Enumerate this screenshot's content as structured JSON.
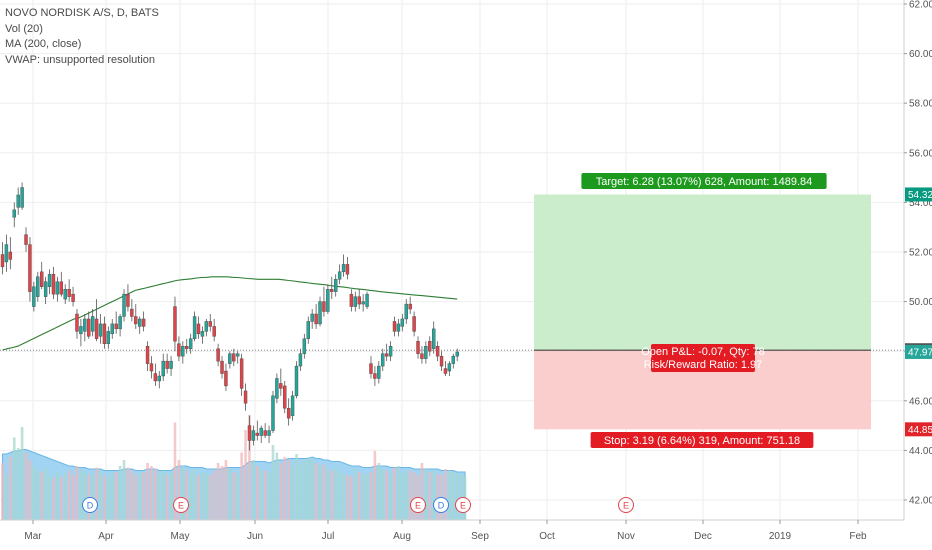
{
  "legend": {
    "symbol": "NOVO NORDISK A/S, D, BATS",
    "vol": "Vol (20)",
    "ma": "MA (200, close)",
    "vwap": "VWAP: unsupported resolution"
  },
  "chart_data": {
    "type": "candlestick",
    "symbol": "NOVO NORDISK A/S",
    "interval": "D",
    "exchange": "BATS",
    "y_ticks": [
      "62.00",
      "60.00",
      "58.00",
      "56.00",
      "54.00",
      "52.00",
      "50.00",
      "48.00",
      "46.00",
      "44.00",
      "42.00"
    ],
    "ylim": [
      41.5,
      62.2
    ],
    "x_ticks": [
      "Mar",
      "Apr",
      "May",
      "Jun",
      "Jul",
      "Aug",
      "Sep",
      "Oct",
      "Nov",
      "Dec",
      "2019",
      "Feb"
    ],
    "grid": true,
    "candles": [
      {
        "o": 51.9,
        "h": 52.4,
        "l": 51.1,
        "c": 51.4
      },
      {
        "o": 51.6,
        "h": 52.7,
        "l": 51.2,
        "c": 52.3
      },
      {
        "o": 52.0,
        "h": 52.6,
        "l": 51.3,
        "c": 51.7
      },
      {
        "o": 53.4,
        "h": 54.0,
        "l": 53.0,
        "c": 53.7
      },
      {
        "o": 53.8,
        "h": 54.6,
        "l": 53.5,
        "c": 54.3
      },
      {
        "o": 53.8,
        "h": 54.8,
        "l": 53.7,
        "c": 54.6
      },
      {
        "o": 52.7,
        "h": 53.0,
        "l": 52.0,
        "c": 52.3
      },
      {
        "o": 52.3,
        "h": 52.6,
        "l": 50.0,
        "c": 50.4
      },
      {
        "o": 49.8,
        "h": 50.8,
        "l": 49.6,
        "c": 50.6
      },
      {
        "o": 50.2,
        "h": 51.2,
        "l": 50.0,
        "c": 51.0
      },
      {
        "o": 51.2,
        "h": 51.6,
        "l": 50.5,
        "c": 50.6
      },
      {
        "o": 50.2,
        "h": 51.0,
        "l": 49.9,
        "c": 50.8
      },
      {
        "o": 50.6,
        "h": 51.3,
        "l": 50.3,
        "c": 51.1
      },
      {
        "o": 51.1,
        "h": 51.4,
        "l": 50.1,
        "c": 50.3
      },
      {
        "o": 50.3,
        "h": 51.0,
        "l": 50.0,
        "c": 50.8
      },
      {
        "o": 50.8,
        "h": 51.2,
        "l": 50.2,
        "c": 50.3
      },
      {
        "o": 50.1,
        "h": 50.7,
        "l": 49.9,
        "c": 50.5
      },
      {
        "o": 50.5,
        "h": 50.9,
        "l": 50.0,
        "c": 50.2
      },
      {
        "o": 50.3,
        "h": 50.6,
        "l": 49.8,
        "c": 50.0
      },
      {
        "o": 49.5,
        "h": 49.7,
        "l": 48.5,
        "c": 48.8
      },
      {
        "o": 48.7,
        "h": 49.3,
        "l": 48.2,
        "c": 49.0
      },
      {
        "o": 48.8,
        "h": 49.5,
        "l": 48.4,
        "c": 49.3
      },
      {
        "o": 49.3,
        "h": 49.6,
        "l": 48.5,
        "c": 48.6
      },
      {
        "o": 48.8,
        "h": 49.7,
        "l": 48.6,
        "c": 49.4
      },
      {
        "o": 49.3,
        "h": 50.1,
        "l": 48.4,
        "c": 48.5
      },
      {
        "o": 48.6,
        "h": 49.5,
        "l": 48.3,
        "c": 49.1
      },
      {
        "o": 49.1,
        "h": 49.4,
        "l": 48.1,
        "c": 48.3
      },
      {
        "o": 48.3,
        "h": 49.0,
        "l": 48.1,
        "c": 48.8
      },
      {
        "o": 48.7,
        "h": 49.3,
        "l": 48.5,
        "c": 49.1
      },
      {
        "o": 49.1,
        "h": 49.6,
        "l": 48.7,
        "c": 48.9
      },
      {
        "o": 48.9,
        "h": 49.5,
        "l": 48.6,
        "c": 49.4
      },
      {
        "o": 49.4,
        "h": 50.5,
        "l": 49.2,
        "c": 50.3
      },
      {
        "o": 50.3,
        "h": 50.7,
        "l": 49.6,
        "c": 49.8
      },
      {
        "o": 49.7,
        "h": 50.1,
        "l": 49.2,
        "c": 49.4
      },
      {
        "o": 49.4,
        "h": 49.9,
        "l": 48.9,
        "c": 49.1
      },
      {
        "o": 49.0,
        "h": 49.4,
        "l": 48.7,
        "c": 49.3
      },
      {
        "o": 49.3,
        "h": 49.6,
        "l": 48.8,
        "c": 49.0
      },
      {
        "o": 48.2,
        "h": 48.4,
        "l": 47.2,
        "c": 47.5
      },
      {
        "o": 47.5,
        "h": 47.8,
        "l": 46.9,
        "c": 47.2
      },
      {
        "o": 47.1,
        "h": 47.5,
        "l": 46.6,
        "c": 46.8
      },
      {
        "o": 46.8,
        "h": 47.2,
        "l": 46.5,
        "c": 47.0
      },
      {
        "o": 47.0,
        "h": 47.9,
        "l": 46.8,
        "c": 47.6
      },
      {
        "o": 47.6,
        "h": 47.9,
        "l": 47.1,
        "c": 47.3
      },
      {
        "o": 47.3,
        "h": 47.8,
        "l": 47.0,
        "c": 47.6
      },
      {
        "o": 49.8,
        "h": 50.2,
        "l": 48.0,
        "c": 48.4
      },
      {
        "o": 48.3,
        "h": 48.6,
        "l": 47.6,
        "c": 47.8
      },
      {
        "o": 47.8,
        "h": 48.4,
        "l": 47.5,
        "c": 48.2
      },
      {
        "o": 48.2,
        "h": 48.5,
        "l": 47.9,
        "c": 48.1
      },
      {
        "o": 48.1,
        "h": 48.7,
        "l": 47.9,
        "c": 48.5
      },
      {
        "o": 48.5,
        "h": 49.6,
        "l": 48.4,
        "c": 49.4
      },
      {
        "o": 49.1,
        "h": 49.4,
        "l": 48.5,
        "c": 48.7
      },
      {
        "o": 48.6,
        "h": 49.0,
        "l": 48.3,
        "c": 48.8
      },
      {
        "o": 48.8,
        "h": 49.3,
        "l": 48.6,
        "c": 49.2
      },
      {
        "o": 49.2,
        "h": 49.5,
        "l": 48.8,
        "c": 49.0
      },
      {
        "o": 49.0,
        "h": 49.3,
        "l": 48.4,
        "c": 48.6
      },
      {
        "o": 48.1,
        "h": 48.3,
        "l": 47.4,
        "c": 47.6
      },
      {
        "o": 47.6,
        "h": 47.8,
        "l": 46.9,
        "c": 47.1
      },
      {
        "o": 47.2,
        "h": 47.5,
        "l": 46.4,
        "c": 46.6
      },
      {
        "o": 47.5,
        "h": 48.0,
        "l": 47.3,
        "c": 47.9
      },
      {
        "o": 47.9,
        "h": 48.1,
        "l": 47.4,
        "c": 47.6
      },
      {
        "o": 47.8,
        "h": 48.0,
        "l": 47.5,
        "c": 47.9
      },
      {
        "o": 47.7,
        "h": 47.9,
        "l": 46.2,
        "c": 46.5
      },
      {
        "o": 46.4,
        "h": 46.7,
        "l": 45.6,
        "c": 45.9
      },
      {
        "o": 45.0,
        "h": 45.4,
        "l": 44.0,
        "c": 44.4
      },
      {
        "o": 44.4,
        "h": 45.0,
        "l": 44.2,
        "c": 44.8
      },
      {
        "o": 44.7,
        "h": 45.2,
        "l": 44.4,
        "c": 44.6
      },
      {
        "o": 44.6,
        "h": 45.0,
        "l": 44.3,
        "c": 44.9
      },
      {
        "o": 44.8,
        "h": 45.1,
        "l": 44.5,
        "c": 44.6
      },
      {
        "o": 44.6,
        "h": 45.0,
        "l": 44.3,
        "c": 44.8
      },
      {
        "o": 44.8,
        "h": 46.4,
        "l": 44.7,
        "c": 46.2
      },
      {
        "o": 46.1,
        "h": 47.1,
        "l": 45.9,
        "c": 46.9
      },
      {
        "o": 46.7,
        "h": 47.3,
        "l": 46.2,
        "c": 46.5
      },
      {
        "o": 46.6,
        "h": 46.8,
        "l": 45.5,
        "c": 45.7
      },
      {
        "o": 45.7,
        "h": 46.1,
        "l": 45.0,
        "c": 45.3
      },
      {
        "o": 45.4,
        "h": 46.4,
        "l": 45.2,
        "c": 46.2
      },
      {
        "o": 46.2,
        "h": 47.6,
        "l": 46.1,
        "c": 47.4
      },
      {
        "o": 47.4,
        "h": 48.1,
        "l": 47.2,
        "c": 47.9
      },
      {
        "o": 47.9,
        "h": 48.7,
        "l": 47.7,
        "c": 48.5
      },
      {
        "o": 48.5,
        "h": 49.4,
        "l": 48.3,
        "c": 49.2
      },
      {
        "o": 49.2,
        "h": 49.7,
        "l": 48.9,
        "c": 49.5
      },
      {
        "o": 49.5,
        "h": 49.9,
        "l": 48.9,
        "c": 49.1
      },
      {
        "o": 49.1,
        "h": 50.2,
        "l": 49.0,
        "c": 50.0
      },
      {
        "o": 50.0,
        "h": 50.6,
        "l": 49.4,
        "c": 49.6
      },
      {
        "o": 49.6,
        "h": 50.7,
        "l": 49.5,
        "c": 50.5
      },
      {
        "o": 50.5,
        "h": 51.0,
        "l": 50.1,
        "c": 50.4
      },
      {
        "o": 50.4,
        "h": 51.1,
        "l": 50.2,
        "c": 50.9
      },
      {
        "o": 50.9,
        "h": 51.5,
        "l": 50.7,
        "c": 51.2
      },
      {
        "o": 51.2,
        "h": 51.9,
        "l": 51.0,
        "c": 51.5
      },
      {
        "o": 51.5,
        "h": 51.8,
        "l": 50.9,
        "c": 51.1
      },
      {
        "o": 50.3,
        "h": 50.5,
        "l": 49.6,
        "c": 49.8
      },
      {
        "o": 49.8,
        "h": 50.4,
        "l": 49.6,
        "c": 50.2
      },
      {
        "o": 50.2,
        "h": 50.5,
        "l": 49.7,
        "c": 49.9
      },
      {
        "o": 49.9,
        "h": 50.3,
        "l": 49.6,
        "c": 50.0
      },
      {
        "o": 49.8,
        "h": 50.4,
        "l": 49.7,
        "c": 50.3
      },
      {
        "o": 47.5,
        "h": 47.8,
        "l": 46.9,
        "c": 47.1
      },
      {
        "o": 47.1,
        "h": 47.4,
        "l": 46.6,
        "c": 46.9
      },
      {
        "o": 46.9,
        "h": 47.6,
        "l": 46.7,
        "c": 47.4
      },
      {
        "o": 47.4,
        "h": 48.1,
        "l": 47.2,
        "c": 47.9
      },
      {
        "o": 47.9,
        "h": 48.3,
        "l": 47.6,
        "c": 47.8
      },
      {
        "o": 47.8,
        "h": 48.4,
        "l": 47.6,
        "c": 48.2
      },
      {
        "o": 49.2,
        "h": 49.4,
        "l": 48.6,
        "c": 48.8
      },
      {
        "o": 48.8,
        "h": 49.3,
        "l": 48.6,
        "c": 49.1
      },
      {
        "o": 49.0,
        "h": 49.5,
        "l": 48.8,
        "c": 49.3
      },
      {
        "o": 49.3,
        "h": 50.1,
        "l": 49.1,
        "c": 49.9
      },
      {
        "o": 49.9,
        "h": 50.2,
        "l": 49.5,
        "c": 49.7
      },
      {
        "o": 49.4,
        "h": 49.6,
        "l": 48.6,
        "c": 48.8
      },
      {
        "o": 48.4,
        "h": 48.6,
        "l": 47.7,
        "c": 47.9
      },
      {
        "o": 47.9,
        "h": 48.2,
        "l": 47.5,
        "c": 47.7
      },
      {
        "o": 47.7,
        "h": 48.4,
        "l": 47.5,
        "c": 48.2
      },
      {
        "o": 48.4,
        "h": 48.6,
        "l": 47.8,
        "c": 48.0
      },
      {
        "o": 48.1,
        "h": 49.2,
        "l": 47.9,
        "c": 48.9
      },
      {
        "o": 48.2,
        "h": 48.4,
        "l": 47.6,
        "c": 47.8
      },
      {
        "o": 47.8,
        "h": 48.0,
        "l": 47.2,
        "c": 47.4
      },
      {
        "o": 47.3,
        "h": 47.6,
        "l": 47.0,
        "c": 47.1
      },
      {
        "o": 47.2,
        "h": 47.6,
        "l": 47.0,
        "c": 47.5
      },
      {
        "o": 47.5,
        "h": 47.9,
        "l": 47.3,
        "c": 47.8
      },
      {
        "o": 47.8,
        "h": 48.1,
        "l": 47.6,
        "c": 47.97
      }
    ],
    "volume": [
      38,
      30,
      42,
      55,
      48,
      62,
      45,
      40,
      36,
      34,
      32,
      35,
      30,
      28,
      32,
      29,
      31,
      33,
      30,
      36,
      34,
      32,
      30,
      31,
      35,
      33,
      30,
      29,
      31,
      32,
      36,
      40,
      35,
      33,
      30,
      31,
      32,
      38,
      36,
      34,
      31,
      33,
      30,
      32,
      65,
      40,
      36,
      33,
      31,
      34,
      30,
      32,
      31,
      30,
      33,
      38,
      36,
      40,
      34,
      32,
      31,
      45,
      60,
      70,
      40,
      36,
      34,
      33,
      32,
      50,
      45,
      38,
      42,
      40,
      36,
      44,
      38,
      40,
      42,
      40,
      38,
      36,
      37,
      34,
      33,
      35,
      32,
      31,
      30,
      29,
      34,
      32,
      30,
      31,
      32,
      46,
      38,
      34,
      33,
      31,
      35,
      36,
      32,
      31,
      33,
      32,
      30,
      38,
      34,
      32,
      33,
      31,
      30,
      34,
      33,
      32,
      31,
      30,
      29
    ],
    "vol_ma": [
      44,
      44,
      45,
      46,
      46,
      47,
      47,
      46,
      45,
      44,
      43,
      42,
      41,
      40,
      39,
      38,
      37,
      36,
      36,
      35,
      35,
      35,
      34,
      34,
      34,
      34,
      33,
      33,
      33,
      33,
      33,
      34,
      34,
      34,
      33,
      33,
      33,
      34,
      34,
      34,
      33,
      33,
      33,
      33,
      35,
      36,
      36,
      36,
      35,
      35,
      35,
      35,
      34,
      34,
      34,
      34,
      34,
      35,
      35,
      35,
      35,
      35,
      37,
      39,
      39,
      39,
      39,
      39,
      38,
      39,
      40,
      40,
      40,
      41,
      41,
      41,
      41,
      41,
      41,
      42,
      41,
      41,
      40,
      40,
      39,
      39,
      39,
      38,
      37,
      36,
      36,
      36,
      35,
      35,
      35,
      36,
      36,
      36,
      36,
      35,
      35,
      35,
      35,
      35,
      35,
      34,
      34,
      34,
      34,
      34,
      34,
      34,
      33,
      33,
      33,
      33,
      32,
      32,
      32
    ],
    "ma200": [
      48.05,
      48.1,
      48.15,
      48.2,
      48.3,
      48.4,
      48.5,
      48.6,
      48.7,
      48.8,
      48.9,
      49.0,
      49.1,
      49.2,
      49.3,
      49.35,
      49.45,
      49.55,
      49.65,
      49.75,
      49.85,
      49.95,
      50.05,
      50.15,
      50.25,
      50.35,
      50.45,
      50.5,
      50.55,
      50.6,
      50.65,
      50.7,
      50.75,
      50.8,
      50.85,
      50.88,
      50.9,
      50.92,
      50.95,
      50.97,
      50.98,
      51.0,
      51.0,
      51.0,
      51.0,
      50.98,
      50.97,
      50.95,
      50.93,
      50.92,
      50.9,
      50.9,
      50.9,
      50.9,
      50.9,
      50.88,
      50.85,
      50.83,
      50.8,
      50.78,
      50.75,
      50.72,
      50.7,
      50.68,
      50.65,
      50.62,
      50.6,
      50.58,
      50.55,
      50.52,
      50.5,
      50.48,
      50.45,
      50.43,
      50.4,
      50.38,
      50.36,
      50.34,
      50.32,
      50.3,
      50.28,
      50.26,
      50.24,
      50.22,
      50.2,
      50.18,
      50.16,
      50.14,
      50.12,
      50.1
    ],
    "events": [
      {
        "letter": "D",
        "type": "dividend",
        "index": 24
      },
      {
        "letter": "E",
        "type": "earnings",
        "index": 52
      },
      {
        "letter": "E",
        "type": "earnings",
        "index": 119
      },
      {
        "letter": "D",
        "type": "dividend",
        "index": 126
      },
      {
        "letter": "E",
        "type": "earnings",
        "index": 134
      },
      {
        "letter": "E",
        "type": "earnings-upcoming",
        "index": 180
      }
    ],
    "position": {
      "entry": 48.04,
      "target": 54.32,
      "stop": 44.85,
      "target_label": "Target: 6.28 (13.07%) 628, Amount: 1489.84",
      "stop_label": "Stop: 3.19 (6.64%) 319, Amount: 751.18",
      "pnl_label": "Open P&L: -0.07, Qty: 78",
      "rr_label": "Risk/Reward Ratio: 1.97",
      "start_index": 153,
      "end_index": 252
    },
    "price_tags": [
      {
        "value": "54.32",
        "color": "#089981"
      },
      {
        "value": "48.04",
        "color": "#555555"
      },
      {
        "value": "47.97",
        "color": "#26a69a"
      },
      {
        "value": "44.85",
        "color": "#e0242a"
      }
    ]
  },
  "colors": {
    "up": "#26a69a",
    "down": "#e0444a",
    "ma": "#2e7d32",
    "volume_up": "#a7d7cc",
    "volume_down": "#f0b7b9",
    "vol_area": "#8fcdf0",
    "target_zone": "#c7ebc6",
    "stop_zone": "#fbc9c9",
    "target_label": "#1d9a1d",
    "stop_label": "#e31b23"
  }
}
